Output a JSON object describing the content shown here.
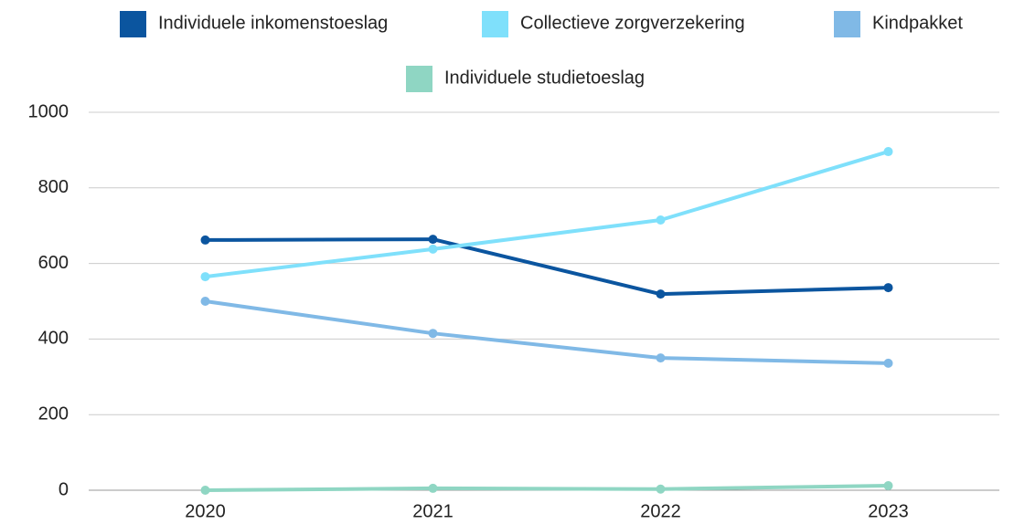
{
  "chart_data": {
    "type": "line",
    "categories": [
      "2020",
      "2021",
      "2022",
      "2023"
    ],
    "series": [
      {
        "name": "Individuele inkomenstoeslag",
        "color": "#0b559f",
        "values": [
          662,
          664,
          519,
          536
        ]
      },
      {
        "name": "Collectieve zorgverzekering",
        "color": "#7fe0fb",
        "values": [
          565,
          638,
          715,
          896
        ]
      },
      {
        "name": "Kindpakket",
        "color": "#80b9e6",
        "values": [
          500,
          415,
          350,
          336
        ]
      },
      {
        "name": "Individuele studietoeslag",
        "color": "#8fd6c3",
        "values": [
          0,
          5,
          3,
          12
        ]
      }
    ],
    "ylim": [
      0,
      1000
    ],
    "yticks": [
      0,
      200,
      400,
      600,
      800,
      1000
    ],
    "grid": true,
    "legend": "top"
  }
}
